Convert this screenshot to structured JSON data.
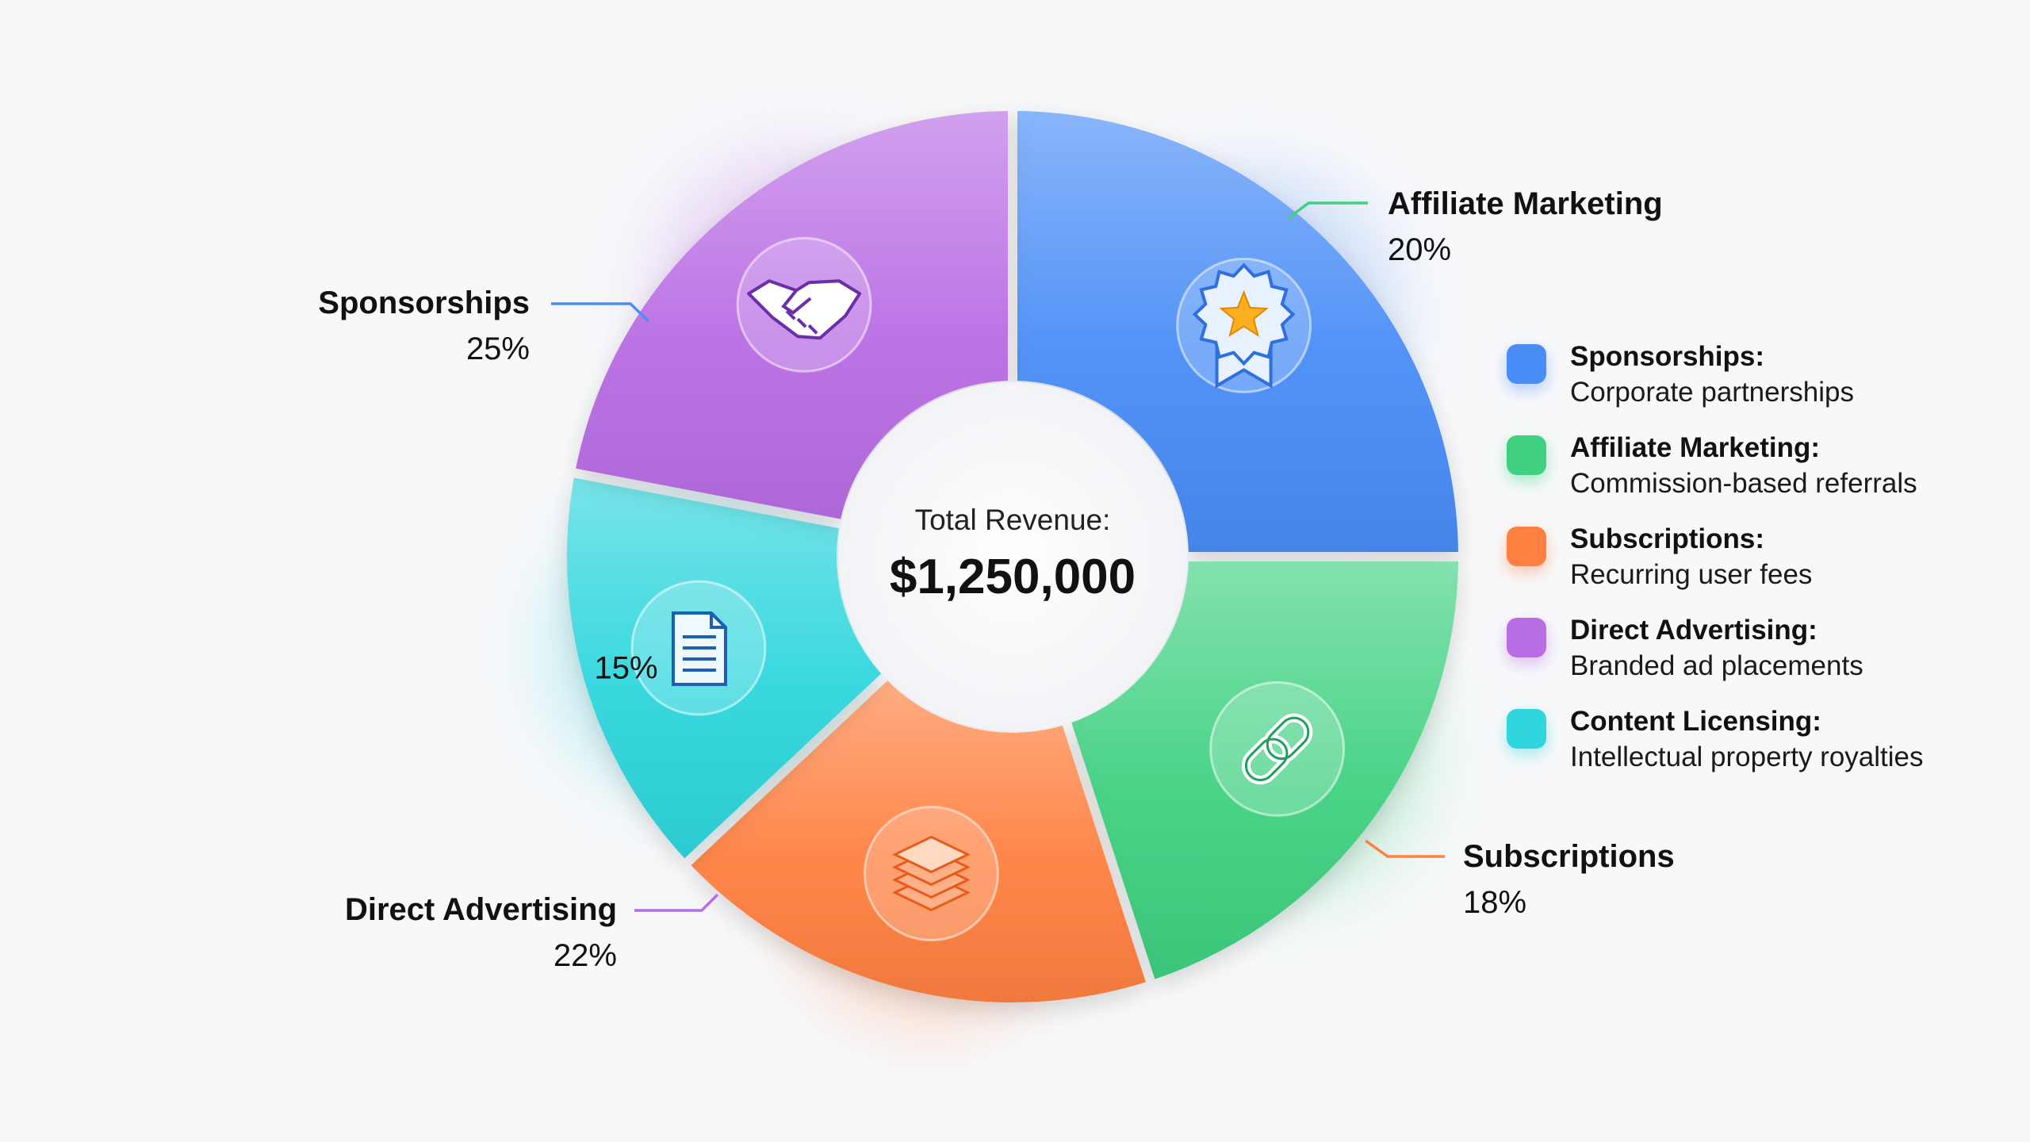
{
  "chart_data": {
    "type": "pie",
    "center_label": "Total Revenue:",
    "total": "$1,250,000",
    "slices": [
      {
        "name": "Sponsorships",
        "percent_label": "25%",
        "value": 25,
        "color": "#4a8df7",
        "icon": "award-star-icon",
        "legend_desc": "Corporate partnerships"
      },
      {
        "name": "Affiliate Marketing",
        "percent_label": "20%",
        "value": 20,
        "color": "#3fd181",
        "icon": "link-chain-icon",
        "legend_desc": "Commission-based referrals"
      },
      {
        "name": "Subscriptions",
        "percent_label": "18%",
        "value": 18,
        "color": "#ff8040",
        "icon": "layers-stack-icon",
        "legend_desc": "Recurring user fees"
      },
      {
        "name": "Content Licensing",
        "percent_label": "15%",
        "value": 15,
        "color": "#2fd6dd",
        "icon": "document-icon",
        "legend_desc": "Intellectual property royalties"
      },
      {
        "name": "Direct Advertising",
        "percent_label": "22%",
        "value": 22,
        "color": "#b96de4",
        "icon": "handshake-icon",
        "legend_desc": "Branded ad placements"
      }
    ]
  },
  "legend": [
    {
      "title": "Sponsorships:",
      "desc": "Corporate partnerships",
      "color": "#4a8df7"
    },
    {
      "title": "Affiliate Marketing:",
      "desc": "Commission-based referrals",
      "color": "#3fd181"
    },
    {
      "title": "Subscriptions:",
      "desc": "Recurring user fees",
      "color": "#ff8040"
    },
    {
      "title": "Direct Advertising:",
      "desc": "Branded ad placements",
      "color": "#b96de4"
    },
    {
      "title": "Content Licensing:",
      "desc": "Intellectual property royalties",
      "color": "#2fd6dd"
    }
  ]
}
